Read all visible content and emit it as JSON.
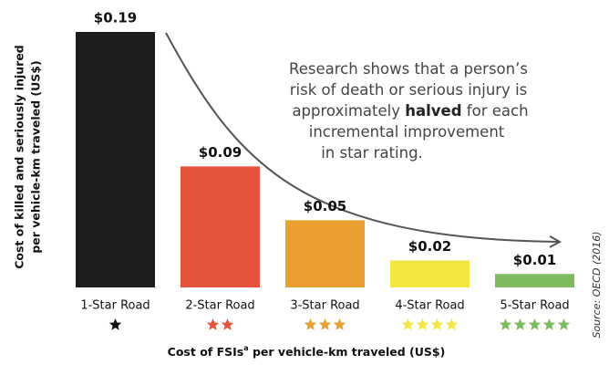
{
  "chart_data": {
    "type": "bar",
    "categories": [
      "1-Star Road",
      "2-Star Road",
      "3-Star Road",
      "4-Star Road",
      "5-Star Road"
    ],
    "values": [
      0.19,
      0.09,
      0.05,
      0.02,
      0.01
    ],
    "value_labels": [
      "$0.19",
      "$0.09",
      "$0.05",
      "$0.02",
      "$0.01"
    ],
    "colors": [
      "#1c1c1c",
      "#e5533d",
      "#e9a02e",
      "#f4e640",
      "#7dbb5c"
    ],
    "y_label_lines": [
      "Cost of killed and seriously injured",
      "per vehicle-km traveled (US$)"
    ],
    "x_label": {
      "before": "Cost of FSIs",
      "superscript": "a",
      "after": " per vehicle-km traveled (US$)"
    },
    "annotation_lines": [
      [
        {
          "text": "Research shows that a person’s"
        }
      ],
      [
        {
          "text": "risk of death or serious injury is"
        }
      ],
      [
        {
          "text": "approximately "
        },
        {
          "text": "halved",
          "bold": true
        },
        {
          "text": " for each"
        }
      ],
      [
        {
          "text": "incremental improvement"
        }
      ],
      [
        {
          "text": "in star rating."
        }
      ]
    ],
    "source": "Source: OECD (2016)"
  }
}
